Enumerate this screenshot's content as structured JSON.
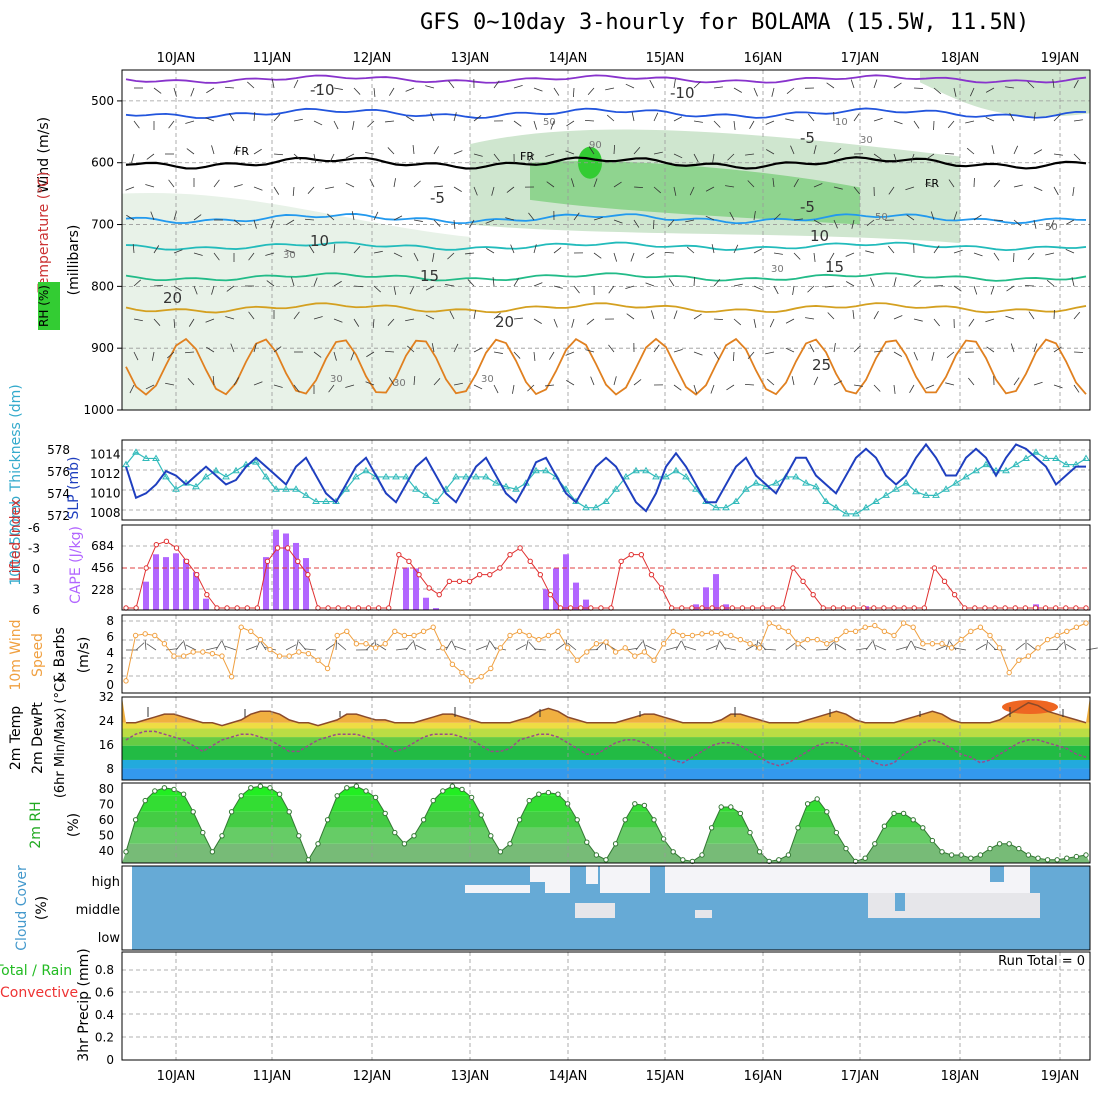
{
  "title": "GFS 0~10day 3-hourly for BOLAMA (15.5W, 11.5N)",
  "colors": {
    "rh_fill": "#33cc33",
    "orange": "#f0a040",
    "purple": "#b266ff",
    "slp": "#1f3fbf",
    "thick": "#33bbbb",
    "temp_fill": "#e0a050",
    "cloud": "#66aad6",
    "grid": "#999999"
  },
  "chart_data": [
    {
      "type": "line",
      "panel": "vertical cross section",
      "ylabels": [
        "Wind (m/s)",
        "Temperature (°C)",
        "(millibars)",
        "RH (%)"
      ],
      "ylim": [
        1000,
        450
      ],
      "yticks": [
        500,
        600,
        700,
        800,
        900,
        1000
      ],
      "x_ticks_top": [
        "10JAN",
        "11JAN",
        "12JAN",
        "13JAN",
        "14JAN",
        "15JAN",
        "16JAN",
        "17JAN",
        "18JAN",
        "19JAN"
      ],
      "isotherm_labels": [
        "-10",
        "-10",
        "-5",
        "FR",
        "FR",
        "FR",
        "-5",
        "-5",
        "10",
        "10",
        "15",
        "15",
        "20",
        "20",
        "25"
      ],
      "rh_labels": [
        "50",
        "10",
        "30",
        "50",
        "90",
        "30",
        "50",
        "30",
        "30",
        "30",
        "30"
      ]
    },
    {
      "type": "line",
      "ylabels": [
        "1000-500mb Thickness (dm)",
        "SLP (mb)"
      ],
      "left_ticks": [
        "572",
        "574",
        "576",
        "578"
      ],
      "right_ticks": [
        "1008",
        "1010",
        "1012",
        "1014"
      ],
      "series": [
        {
          "name": "SLP",
          "values": [
            1012,
            1008.5,
            1009,
            1010,
            1011.5,
            1011,
            1010,
            1011,
            1012,
            1011,
            1010,
            1010.5,
            1012,
            1013,
            1012,
            1011,
            1010,
            1012,
            1013,
            1011,
            1009,
            1008,
            1010,
            1012,
            1013,
            1011,
            1009,
            1008,
            1010,
            1012,
            1013,
            1011,
            1009,
            1008,
            1010,
            1012,
            1013,
            1011,
            1009,
            1008,
            1010,
            1012.5,
            1013,
            1011,
            1009,
            1008,
            1010,
            1012,
            1013,
            1012,
            1010,
            1008,
            1007,
            1009,
            1012,
            1013.5,
            1012,
            1010,
            1008,
            1008,
            1010,
            1012,
            1013,
            1011,
            1010,
            1009,
            1011,
            1013,
            1013,
            1011,
            1010,
            1009,
            1011,
            1013,
            1014,
            1013,
            1011,
            1010,
            1011,
            1013,
            1014.5,
            1013,
            1011,
            1011,
            1013,
            1014,
            1013,
            1011,
            1013,
            1014.5,
            1014,
            1013,
            1012,
            1010,
            1011,
            1012,
            1012
          ]
        },
        {
          "name": "Thickness",
          "values": [
            576,
            577,
            576.5,
            576.5,
            575,
            574,
            574.5,
            574.2,
            575,
            575.5,
            575,
            575.5,
            576,
            576.2,
            575,
            574,
            574,
            574,
            573.5,
            573,
            573,
            573,
            574,
            575,
            575.5,
            575,
            575,
            575,
            575,
            574,
            573.5,
            573,
            574,
            575,
            575,
            575,
            575,
            574.5,
            574.2,
            574,
            574.5,
            575.5,
            575.5,
            575,
            574,
            573,
            572.5,
            572.5,
            573,
            574,
            575,
            575.5,
            575.5,
            575,
            575,
            575.5,
            575,
            574,
            573,
            572.5,
            572.5,
            573,
            574,
            574.5,
            574.2,
            574.5,
            575,
            575,
            574.5,
            574.2,
            573,
            572.5,
            572,
            572,
            572.5,
            573,
            573.5,
            574,
            574.5,
            573.8,
            573.5,
            573.5,
            574,
            574.5,
            575,
            575.5,
            576,
            575.5,
            575.5,
            576,
            576.5,
            577,
            576.5,
            576.5,
            576,
            576,
            576.5
          ]
        }
      ]
    },
    {
      "type": "bar",
      "ylabels": [
        "Lifted Index",
        "CAPE (J/kg)"
      ],
      "left_ticks": [
        "-6",
        "-3",
        "0",
        "3",
        "6"
      ],
      "right_ticks": [
        "228",
        "456",
        "684"
      ],
      "bars": [
        0,
        0,
        0,
        0,
        0,
        0,
        0,
        0,
        0,
        0,
        0,
        0,
        0,
        0,
        0,
        0,
        0,
        0,
        0,
        0,
        0,
        0,
        0,
        0,
        0,
        0,
        0,
        0,
        0,
        0,
        0,
        0,
        0,
        0,
        0,
        0,
        0,
        0,
        0,
        0,
        0,
        0,
        0,
        0,
        0,
        0,
        0,
        0,
        0,
        0,
        0,
        0,
        0,
        0,
        0,
        0,
        0,
        0,
        0,
        0,
        0,
        0,
        0,
        0,
        0,
        0,
        0,
        0,
        0,
        0,
        0,
        0,
        0,
        0,
        0,
        0,
        0,
        0,
        0,
        0,
        0,
        0,
        0,
        0,
        0,
        0,
        0,
        0,
        0,
        0,
        0,
        0,
        0,
        0,
        0,
        0,
        0,
        0,
        0,
        0
      ],
      "cape": [
        0,
        0,
        300,
        590,
        560,
        600,
        540,
        400,
        120,
        0,
        0,
        0,
        0,
        0,
        560,
        850,
        810,
        710,
        550,
        0,
        0,
        0,
        0,
        0,
        0,
        0,
        0,
        0,
        450,
        440,
        130,
        20,
        0,
        0,
        0,
        0,
        0,
        0,
        0,
        0,
        0,
        0,
        220,
        440,
        590,
        290,
        110,
        0,
        0,
        0,
        0,
        0,
        0,
        0,
        0,
        0,
        0,
        60,
        240,
        380,
        60,
        0,
        0,
        0,
        0,
        0,
        0,
        0,
        0,
        0,
        0,
        0,
        0,
        0,
        40,
        0,
        0,
        0,
        0,
        0,
        0,
        0,
        0,
        0,
        0,
        0,
        0,
        0,
        0,
        0,
        0,
        60,
        0,
        0,
        0,
        0,
        0,
        0,
        0,
        0,
        0,
        0,
        0,
        0,
        0,
        0,
        0,
        0,
        0,
        0,
        0,
        0,
        0,
        0,
        0,
        0,
        0,
        0,
        0,
        0,
        0,
        0,
        0,
        0,
        0,
        0,
        0,
        0,
        0,
        0,
        0,
        0,
        0,
        0,
        0,
        0,
        0,
        0,
        0,
        0,
        0,
        0,
        0,
        0,
        0,
        0,
        0,
        0,
        0,
        0,
        0,
        0,
        0,
        0,
        0,
        0,
        0,
        0,
        0,
        0,
        0,
        0,
        0,
        0,
        0,
        0,
        0,
        0,
        0,
        0,
        0,
        0,
        0,
        0,
        0,
        0,
        0,
        0,
        0,
        0,
        0,
        0,
        0,
        0,
        0,
        0,
        0,
        0,
        0,
        0,
        0,
        0,
        0,
        0,
        0,
        0,
        0,
        0,
        0,
        0,
        0,
        0,
        0,
        0,
        0,
        0,
        0,
        0,
        0,
        0,
        0,
        0,
        0,
        0,
        0,
        0,
        0,
        0,
        0,
        0,
        0,
        0,
        0,
        0,
        0,
        0,
        0,
        0,
        0,
        0,
        0,
        0,
        0,
        0,
        0,
        0,
        0,
        0
      ],
      "lifted_index": [
        6,
        6,
        0,
        -3.5,
        -4,
        -3,
        -1,
        1,
        4,
        6,
        6,
        6,
        6,
        6,
        -1,
        -3,
        -3,
        -1,
        1,
        6,
        6,
        6,
        6,
        6,
        6,
        6,
        6,
        -2,
        -1,
        1,
        3,
        4,
        2,
        2,
        2,
        1,
        1,
        0,
        -2,
        -3,
        -1,
        1,
        4,
        6,
        6,
        6,
        6,
        6,
        6,
        -1,
        -2,
        -2,
        1,
        3,
        6,
        6,
        6,
        6,
        6,
        6,
        6,
        6,
        6,
        6,
        6,
        6,
        0,
        2,
        4,
        6,
        6,
        6,
        6,
        6,
        6,
        6,
        6,
        6,
        6,
        6,
        0,
        2,
        4,
        6,
        6,
        6,
        6,
        6,
        6,
        6,
        6,
        6,
        6,
        6,
        6,
        6
      ]
    },
    {
      "type": "line",
      "ylabels": [
        "10m Wind",
        "Speed",
        "& Barbs",
        "(m/s)"
      ],
      "left_ticks": [
        "0",
        "2",
        "4",
        "6",
        "8"
      ],
      "series": [
        {
          "name": "Speed",
          "values": [
            0.5,
            6,
            6.2,
            6,
            5,
            3.5,
            3.5,
            4,
            4,
            3.8,
            3.5,
            1,
            7,
            6.5,
            5.5,
            4.3,
            3.5,
            3.5,
            4,
            3.8,
            3,
            2,
            6,
            6.5,
            5,
            5,
            4.5,
            5,
            6.5,
            6,
            6,
            6.5,
            7,
            4.5,
            2.5,
            1.5,
            0.5,
            1,
            2,
            4.5,
            6,
            6.5,
            6,
            5.5,
            6,
            6.5,
            4.5,
            3,
            4,
            5,
            5.2,
            4,
            4.5,
            3.5,
            4,
            3,
            5,
            6.5,
            6,
            6,
            6.2,
            6.3,
            6.2,
            6,
            5.5,
            5,
            4.5,
            7.5,
            7,
            6.5,
            5,
            5.5,
            5.5,
            5,
            5.5,
            6.5,
            6.5,
            7,
            7.2,
            6.5,
            6,
            7.5,
            7,
            5,
            5,
            5,
            4.5,
            5.5,
            6.5,
            7,
            6,
            4.5,
            1.5,
            3,
            3.5,
            4.5,
            5.5,
            6,
            6.5,
            7,
            7.5
          ]
        }
      ]
    },
    {
      "type": "area",
      "ylabels": [
        "2m Temp",
        "2m DewPt",
        "(6hr Min/Max) (°C)"
      ],
      "left_ticks": [
        "8",
        "16",
        "24",
        "32"
      ],
      "series": [
        {
          "name": "2m Temp",
          "values": [
            24,
            24,
            25,
            26,
            27,
            27,
            26,
            25,
            24,
            24,
            23,
            24,
            25,
            27,
            28,
            28,
            27,
            25,
            24,
            24,
            23,
            24,
            25,
            27,
            27,
            26,
            25,
            25,
            24,
            24,
            24,
            25,
            26,
            27,
            27,
            26,
            25,
            24,
            24,
            24,
            24,
            25,
            26,
            28,
            29,
            28,
            26,
            25,
            24,
            24,
            24,
            24,
            25,
            26,
            27,
            27,
            26,
            25,
            24,
            24,
            24,
            24,
            25,
            27,
            27,
            26,
            25,
            24,
            24,
            24,
            24,
            25,
            26,
            27,
            28,
            27,
            25,
            24,
            24,
            24,
            24,
            25,
            26,
            27,
            28,
            27,
            25,
            24,
            24,
            24,
            24,
            25,
            27,
            29,
            31,
            30,
            28,
            27,
            26,
            25,
            24
          ]
        },
        {
          "name": "2m DewPt",
          "values": [
            18,
            20,
            21,
            21,
            20,
            19,
            18,
            16,
            14,
            16,
            18,
            19,
            20,
            20,
            19,
            18,
            16,
            14,
            14,
            16,
            18,
            19,
            20,
            20,
            20,
            19,
            18,
            16,
            14,
            15,
            17,
            19,
            20,
            20,
            20,
            19,
            18,
            16,
            14,
            14,
            15,
            18,
            19,
            20,
            20,
            19,
            17,
            15,
            13,
            13,
            15,
            17,
            18,
            18,
            17,
            15,
            13,
            11,
            10,
            12,
            14,
            16,
            17,
            17,
            16,
            14,
            12,
            10,
            9,
            10,
            12,
            14,
            16,
            17,
            17,
            16,
            14,
            12,
            10,
            9,
            10,
            13,
            15,
            17,
            18,
            17,
            15,
            13,
            12,
            10,
            11,
            13,
            15,
            17,
            18,
            18,
            17,
            16,
            15,
            13,
            12
          ]
        }
      ]
    },
    {
      "type": "area",
      "ylabels": [
        "2m RH",
        "(%)"
      ],
      "left_ticks": [
        "40",
        "50",
        "60",
        "70",
        "80"
      ],
      "series": [
        {
          "name": "2m RH",
          "values": [
            40,
            60,
            72,
            78,
            80,
            79,
            76,
            65,
            52,
            40,
            50,
            65,
            75,
            80,
            81,
            80,
            76,
            65,
            50,
            35,
            45,
            60,
            75,
            80,
            81,
            78,
            74,
            64,
            52,
            45,
            50,
            60,
            72,
            78,
            81,
            79,
            74,
            63,
            50,
            40,
            45,
            60,
            72,
            76,
            77,
            76,
            70,
            60,
            46,
            38,
            35,
            45,
            60,
            70,
            69,
            60,
            48,
            40,
            35,
            34,
            38,
            55,
            68,
            68,
            64,
            52,
            40,
            34,
            35,
            38,
            55,
            70,
            73,
            65,
            52,
            42,
            34,
            36,
            45,
            56,
            64,
            64,
            60,
            55,
            47,
            40,
            38,
            38,
            36,
            38,
            42,
            45,
            45,
            42,
            38,
            36,
            35,
            35,
            36,
            37,
            38
          ]
        }
      ]
    },
    {
      "type": "heatmap",
      "ylabels": [
        "Cloud Cover",
        "(%)"
      ],
      "row_labels": [
        "high",
        "middle",
        "low"
      ]
    },
    {
      "type": "bar",
      "ylabels": [
        "Total / Rain",
        "Convective",
        "3hr Precip (mm)"
      ],
      "left_ticks": [
        "0",
        "0.2",
        "0.4",
        "0.6",
        "0.8"
      ],
      "annotation": "Run Total = 0",
      "x_ticks_bottom": [
        "10JAN",
        "11JAN",
        "12JAN",
        "13JAN",
        "14JAN",
        "15JAN",
        "16JAN",
        "17JAN",
        "18JAN",
        "19JAN"
      ]
    }
  ]
}
